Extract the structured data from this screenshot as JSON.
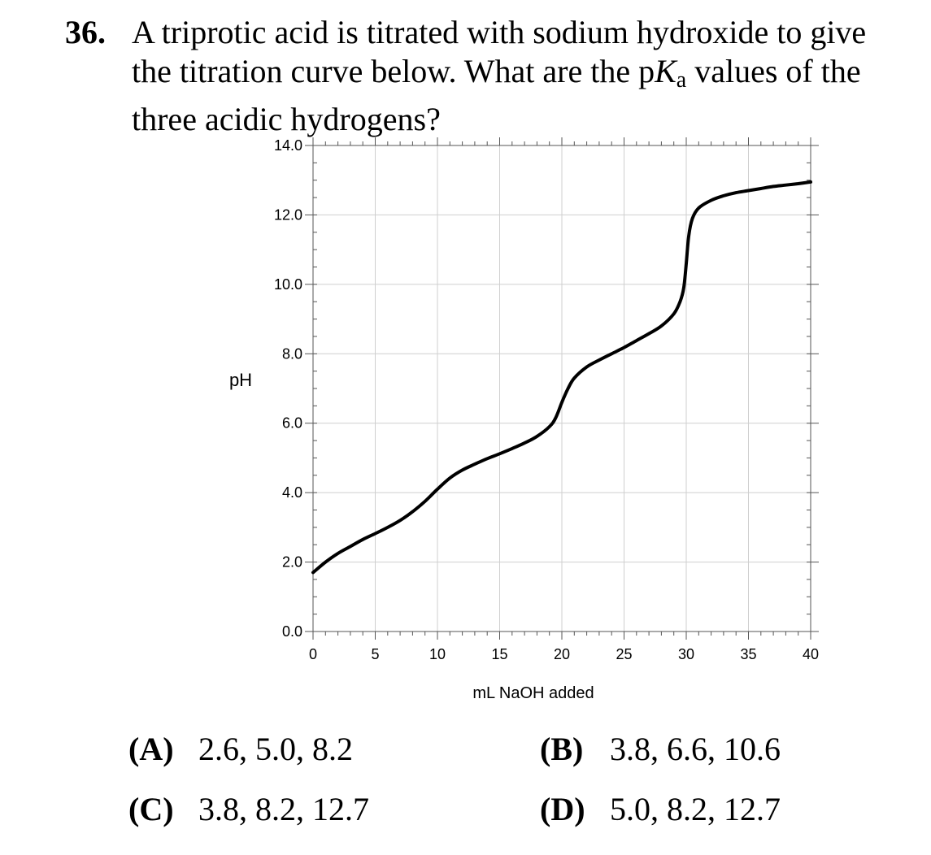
{
  "question": {
    "number": "36.",
    "text_before": "A triprotic acid is titrated with sodium hydroxide to give the titration curve below.  What are the p",
    "ka_symbol": "K",
    "ka_subscript": "a",
    "text_after": " values of the three acidic hydrogens?"
  },
  "chart_data": {
    "type": "line",
    "xlabel": "mL NaOH added",
    "ylabel": "pH",
    "xlim": [
      0,
      40
    ],
    "ylim": [
      0,
      14
    ],
    "x_ticks": [
      "0",
      "5",
      "10",
      "15",
      "20",
      "25",
      "30",
      "35",
      "40"
    ],
    "y_ticks": [
      "0.0",
      "2.0",
      "4.0",
      "6.0",
      "8.0",
      "10.0",
      "12.0",
      "14.0"
    ],
    "grid": true,
    "series": [
      {
        "x": [
          0,
          1,
          2,
          3,
          4,
          5,
          6,
          7,
          8,
          9,
          10,
          11,
          12,
          13,
          14,
          15,
          16,
          17,
          18,
          19,
          19.5,
          20,
          20.5,
          21,
          22,
          23,
          24,
          25,
          26,
          27,
          28,
          29,
          29.5,
          29.8,
          30,
          30.2,
          30.5,
          31,
          32,
          33,
          34,
          35,
          36,
          37,
          38,
          39,
          40
        ],
        "y": [
          1.7,
          2.0,
          2.25,
          2.45,
          2.65,
          2.82,
          3.0,
          3.2,
          3.45,
          3.75,
          4.1,
          4.42,
          4.65,
          4.82,
          4.98,
          5.12,
          5.27,
          5.43,
          5.62,
          5.9,
          6.15,
          6.6,
          7.0,
          7.3,
          7.62,
          7.82,
          8.0,
          8.18,
          8.38,
          8.58,
          8.8,
          9.15,
          9.5,
          9.9,
          10.6,
          11.4,
          11.9,
          12.2,
          12.42,
          12.55,
          12.64,
          12.7,
          12.76,
          12.82,
          12.86,
          12.9,
          12.95
        ],
        "color": "#000000"
      }
    ]
  },
  "choices": [
    {
      "letter": "(A)",
      "text": "2.6, 5.0, 8.2"
    },
    {
      "letter": "(B)",
      "text": "3.8, 6.6, 10.6"
    },
    {
      "letter": "(C)",
      "text": "3.8, 8.2, 12.7"
    },
    {
      "letter": "(D)",
      "text": "5.0, 8.2, 12.7"
    }
  ]
}
